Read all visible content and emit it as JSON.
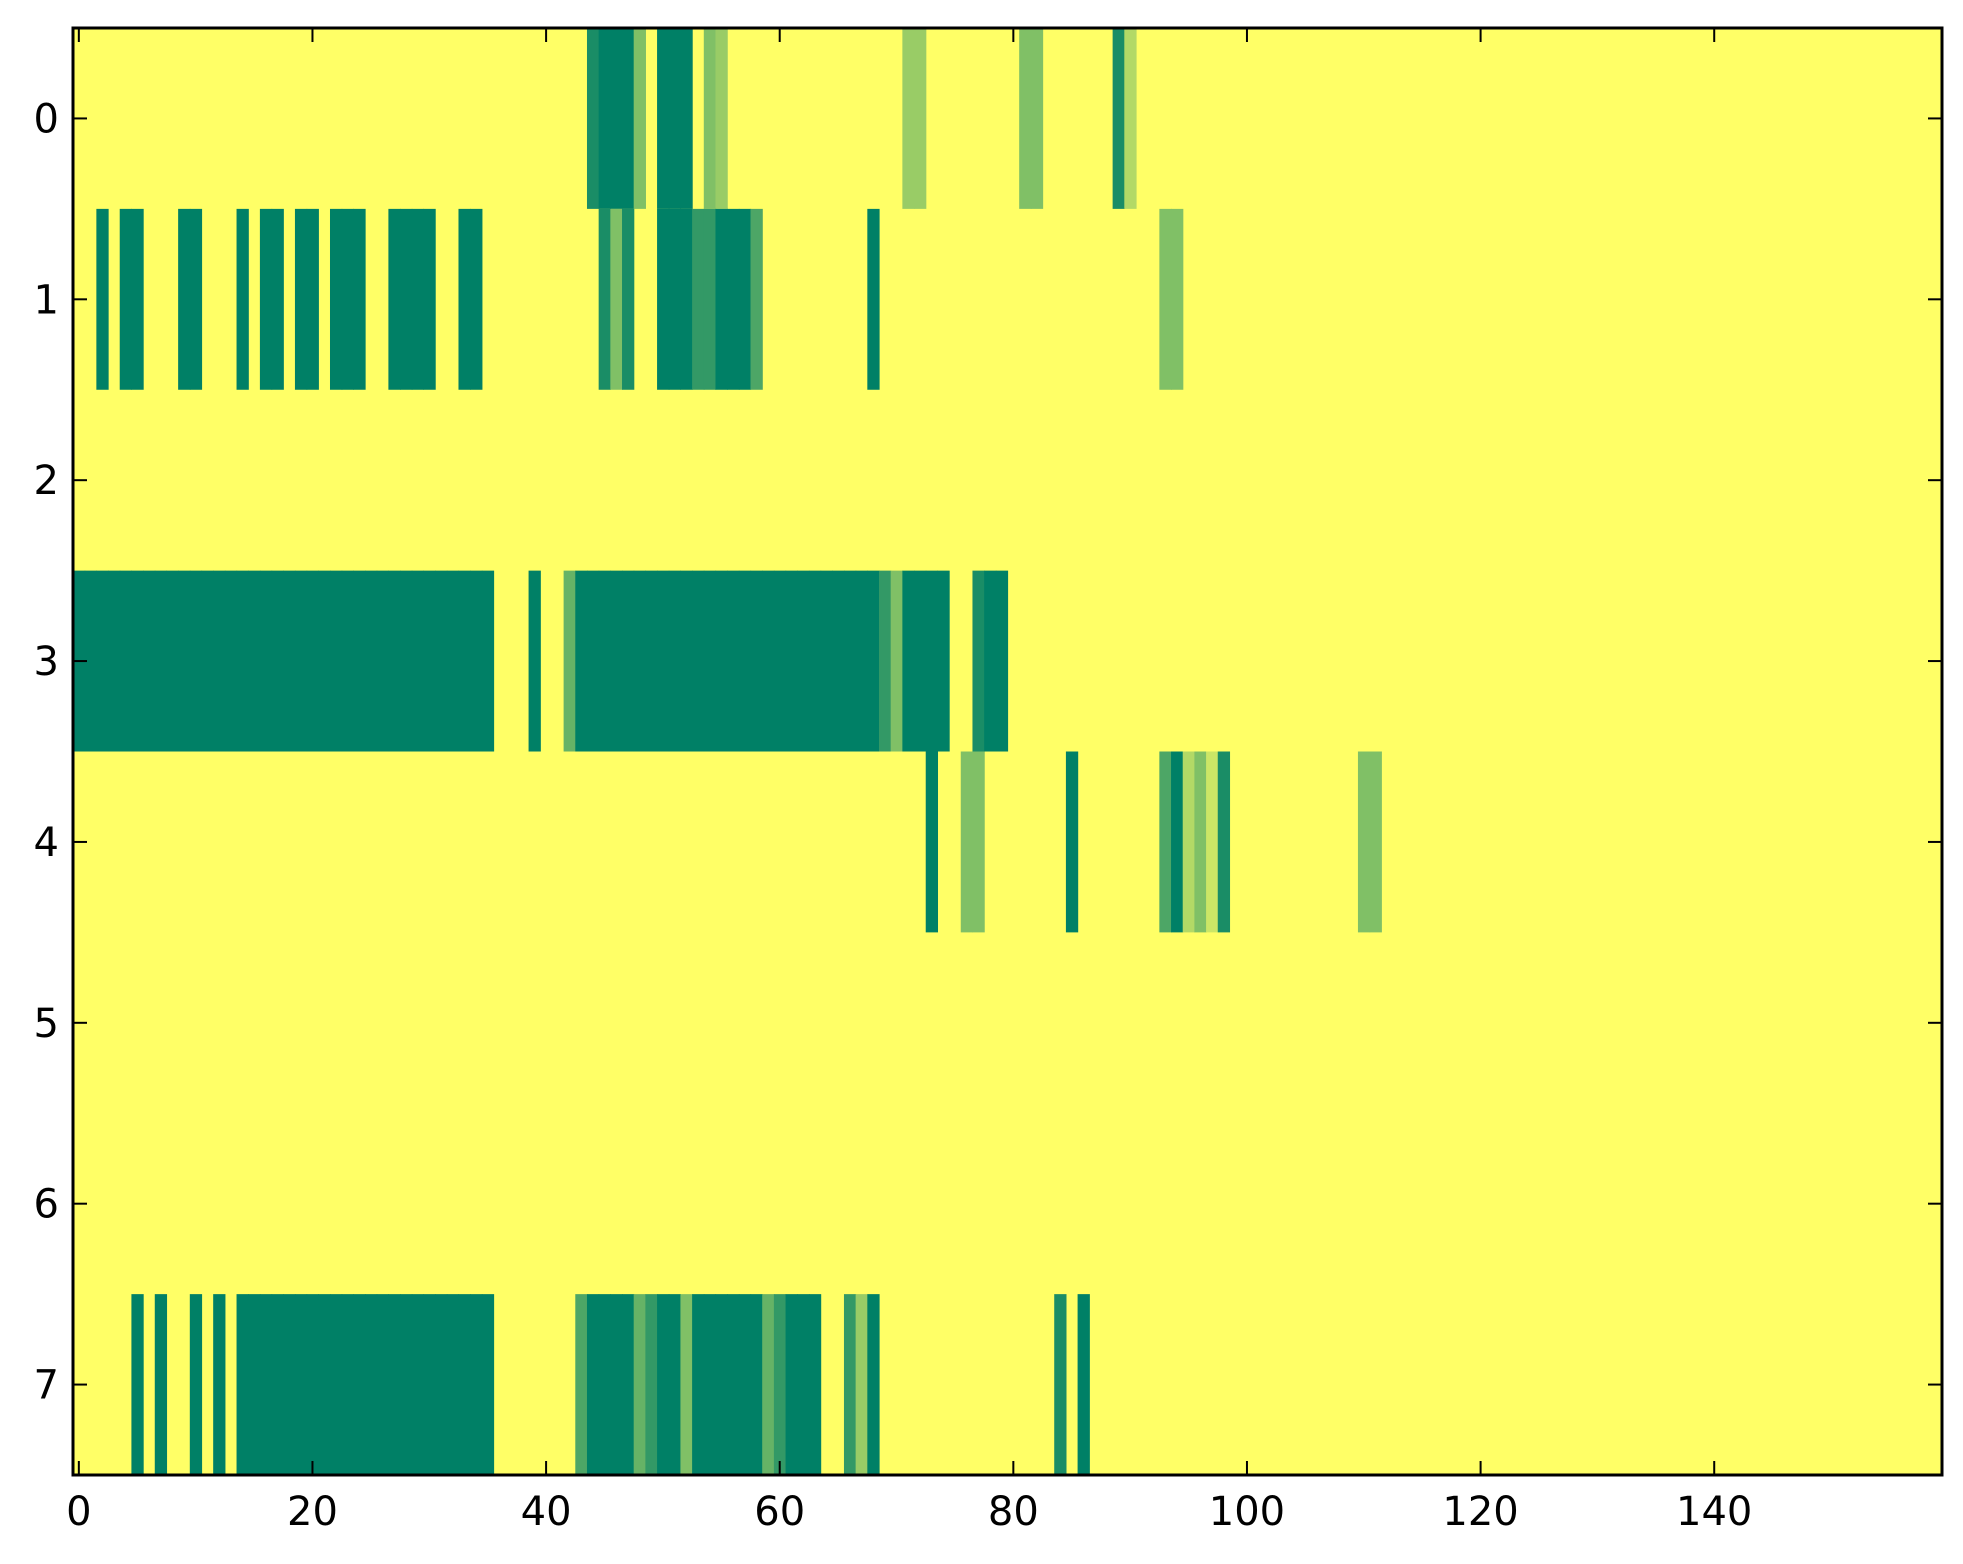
{
  "chart_data": {
    "type": "heatmap",
    "title": "",
    "xlabel": "",
    "ylabel": "",
    "grid": false,
    "n_cols": 160,
    "n_rows": 8,
    "xlim": [
      -0.5,
      159.5
    ],
    "ylim": [
      7.5,
      -0.5
    ],
    "x_ticks": [
      0,
      20,
      40,
      60,
      80,
      100,
      120,
      140
    ],
    "x_tick_labels": [
      "0",
      "20",
      "40",
      "60",
      "80",
      "100",
      "120",
      "140"
    ],
    "y_ticks": [
      0,
      1,
      2,
      3,
      4,
      5,
      6,
      7
    ],
    "y_tick_labels": [
      "0",
      "1",
      "2",
      "3",
      "4",
      "5",
      "6",
      "7"
    ],
    "colormap": "summer_r",
    "colormap_endpoints": [
      "#ffff66",
      "#008066"
    ],
    "value_range": [
      0,
      1
    ],
    "background_value": 0,
    "rows": [
      {
        "row": 0,
        "cells": [
          [
            44,
            0.9
          ],
          [
            45,
            1
          ],
          [
            46,
            1
          ],
          [
            47,
            1
          ],
          [
            48,
            0.5
          ],
          [
            50,
            1
          ],
          [
            51,
            1
          ],
          [
            52,
            1
          ],
          [
            54,
            0.5
          ],
          [
            55,
            0.4
          ],
          [
            71,
            0.4
          ],
          [
            72,
            0.4
          ],
          [
            81,
            0.5
          ],
          [
            82,
            0.5
          ],
          [
            89,
            0.9
          ],
          [
            90,
            0.3
          ]
        ]
      },
      {
        "row": 1,
        "cells": [
          [
            2,
            1
          ],
          [
            4,
            1
          ],
          [
            5,
            1
          ],
          [
            9,
            1
          ],
          [
            10,
            1
          ],
          [
            14,
            1
          ],
          [
            16,
            1
          ],
          [
            17,
            1
          ],
          [
            19,
            1
          ],
          [
            20,
            1
          ],
          [
            22,
            1
          ],
          [
            23,
            1
          ],
          [
            24,
            1
          ],
          [
            27,
            1
          ],
          [
            28,
            1
          ],
          [
            29,
            1
          ],
          [
            30,
            1
          ],
          [
            33,
            1
          ],
          [
            34,
            1
          ],
          [
            45,
            0.9
          ],
          [
            46,
            0.5
          ],
          [
            47,
            0.9
          ],
          [
            50,
            1
          ],
          [
            51,
            1
          ],
          [
            52,
            1
          ],
          [
            53,
            0.8
          ],
          [
            54,
            0.8
          ],
          [
            55,
            1
          ],
          [
            56,
            1
          ],
          [
            57,
            1
          ],
          [
            58,
            0.7
          ],
          [
            68,
            1
          ],
          [
            93,
            0.5
          ],
          [
            94,
            0.5
          ]
        ]
      },
      {
        "row": 3,
        "cells": [
          [
            0,
            1
          ],
          [
            1,
            1
          ],
          [
            2,
            1
          ],
          [
            3,
            1
          ],
          [
            4,
            1
          ],
          [
            5,
            1
          ],
          [
            6,
            1
          ],
          [
            7,
            1
          ],
          [
            8,
            1
          ],
          [
            9,
            1
          ],
          [
            10,
            1
          ],
          [
            11,
            1
          ],
          [
            12,
            1
          ],
          [
            13,
            1
          ],
          [
            14,
            1
          ],
          [
            15,
            1
          ],
          [
            16,
            1
          ],
          [
            17,
            1
          ],
          [
            18,
            1
          ],
          [
            19,
            1
          ],
          [
            20,
            1
          ],
          [
            21,
            1
          ],
          [
            22,
            1
          ],
          [
            23,
            1
          ],
          [
            24,
            1
          ],
          [
            25,
            1
          ],
          [
            26,
            1
          ],
          [
            27,
            1
          ],
          [
            28,
            1
          ],
          [
            29,
            1
          ],
          [
            30,
            1
          ],
          [
            31,
            1
          ],
          [
            32,
            1
          ],
          [
            33,
            1
          ],
          [
            34,
            1
          ],
          [
            35,
            1
          ],
          [
            39,
            1
          ],
          [
            42,
            0.6
          ],
          [
            43,
            1
          ],
          [
            44,
            1
          ],
          [
            45,
            1
          ],
          [
            46,
            1
          ],
          [
            47,
            1
          ],
          [
            48,
            1
          ],
          [
            49,
            1
          ],
          [
            50,
            1
          ],
          [
            51,
            1
          ],
          [
            52,
            1
          ],
          [
            53,
            1
          ],
          [
            54,
            1
          ],
          [
            55,
            1
          ],
          [
            56,
            1
          ],
          [
            57,
            1
          ],
          [
            58,
            1
          ],
          [
            59,
            1
          ],
          [
            60,
            1
          ],
          [
            61,
            1
          ],
          [
            62,
            1
          ],
          [
            63,
            1
          ],
          [
            64,
            1
          ],
          [
            65,
            1
          ],
          [
            66,
            1
          ],
          [
            67,
            1
          ],
          [
            68,
            1
          ],
          [
            69,
            0.8
          ],
          [
            70,
            0.5
          ],
          [
            71,
            1
          ],
          [
            72,
            1
          ],
          [
            73,
            1
          ],
          [
            74,
            1
          ],
          [
            77,
            0.9
          ],
          [
            78,
            1
          ],
          [
            79,
            1
          ]
        ]
      },
      {
        "row": 4,
        "cells": [
          [
            73,
            1
          ],
          [
            76,
            0.5
          ],
          [
            77,
            0.5
          ],
          [
            85,
            1
          ],
          [
            93,
            0.7
          ],
          [
            94,
            1
          ],
          [
            95,
            0.3
          ],
          [
            96,
            0.5
          ],
          [
            97,
            0.2
          ],
          [
            98,
            0.9
          ],
          [
            110,
            0.5
          ],
          [
            111,
            0.5
          ]
        ]
      },
      {
        "row": 7,
        "cells": [
          [
            5,
            1
          ],
          [
            7,
            1
          ],
          [
            10,
            1
          ],
          [
            12,
            1
          ],
          [
            14,
            1
          ],
          [
            15,
            1
          ],
          [
            16,
            1
          ],
          [
            17,
            1
          ],
          [
            18,
            1
          ],
          [
            19,
            1
          ],
          [
            20,
            1
          ],
          [
            21,
            1
          ],
          [
            22,
            1
          ],
          [
            23,
            1
          ],
          [
            24,
            1
          ],
          [
            25,
            1
          ],
          [
            26,
            1
          ],
          [
            27,
            1
          ],
          [
            28,
            1
          ],
          [
            29,
            1
          ],
          [
            30,
            1
          ],
          [
            31,
            1
          ],
          [
            32,
            1
          ],
          [
            33,
            1
          ],
          [
            34,
            1
          ],
          [
            35,
            1
          ],
          [
            43,
            0.7
          ],
          [
            44,
            1
          ],
          [
            45,
            1
          ],
          [
            46,
            1
          ],
          [
            47,
            1
          ],
          [
            48,
            0.6
          ],
          [
            49,
            0.8
          ],
          [
            50,
            1
          ],
          [
            51,
            1
          ],
          [
            52,
            0.5
          ],
          [
            53,
            1
          ],
          [
            54,
            1
          ],
          [
            55,
            1
          ],
          [
            56,
            1
          ],
          [
            57,
            1
          ],
          [
            58,
            1
          ],
          [
            59,
            0.6
          ],
          [
            60,
            0.8
          ],
          [
            61,
            1
          ],
          [
            62,
            1
          ],
          [
            63,
            1
          ],
          [
            66,
            0.8
          ],
          [
            67,
            0.4
          ],
          [
            68,
            1
          ],
          [
            84,
            0.9
          ],
          [
            86,
            1
          ]
        ]
      }
    ]
  }
}
